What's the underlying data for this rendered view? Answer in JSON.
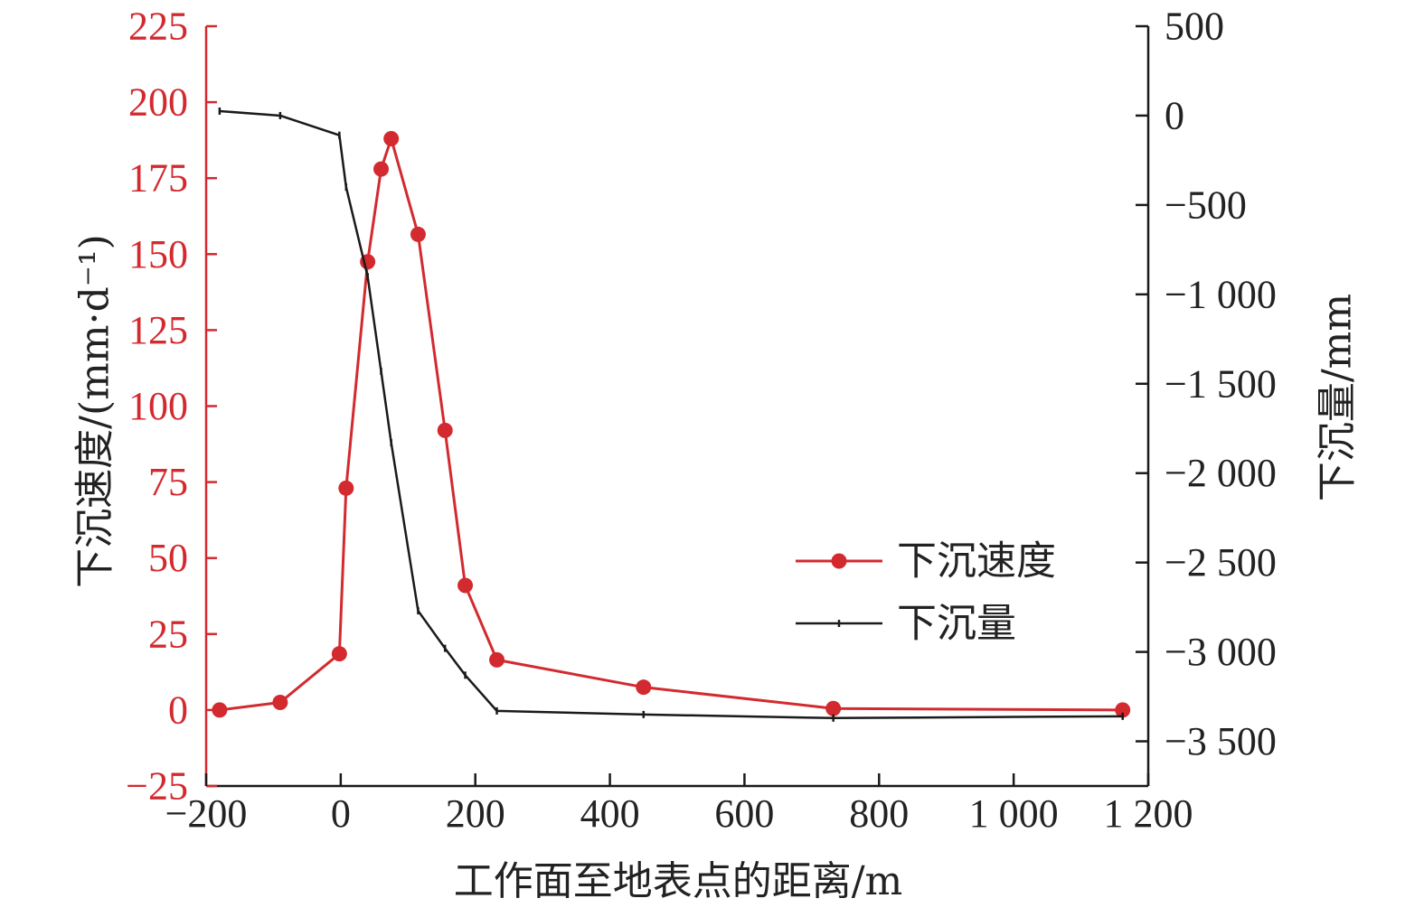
{
  "chart_data": {
    "type": "line",
    "xlabel": "工作面至地表点的距离/m",
    "ylabel_left": "下沉速度/(mm·d⁻¹)",
    "ylabel_right": "下沉量/mm",
    "xlim": [
      -200,
      1200
    ],
    "ylim_left": [
      -25,
      225
    ],
    "ylim_right": [
      -3750,
      500
    ],
    "x_ticks": [
      -200,
      0,
      200,
      400,
      600,
      800,
      1000,
      1200
    ],
    "x_tick_labels": [
      "−200",
      "0",
      "200",
      "400",
      "600",
      "800",
      "1 000",
      "1 200"
    ],
    "y_left_ticks": [
      -25,
      0,
      25,
      50,
      75,
      100,
      125,
      150,
      175,
      200,
      225
    ],
    "y_left_tick_labels": [
      "−25",
      "0",
      "25",
      "50",
      "75",
      "100",
      "125",
      "150",
      "175",
      "200",
      "225"
    ],
    "y_right_ticks": [
      500,
      0,
      -500,
      -1000,
      -1500,
      -2000,
      -2500,
      -3000,
      -3500
    ],
    "y_right_tick_labels": [
      "500",
      "0",
      "−500",
      "−1 000",
      "−1 500",
      "−2 000",
      "−2 500",
      "−3 000",
      "−3 500"
    ],
    "legend_position": "center-right",
    "series": [
      {
        "name": "下沉速度",
        "axis": "left",
        "color": "#d22a2f",
        "marker": "circle",
        "x": [
          -180,
          -90,
          -2,
          8,
          40,
          60,
          75,
          115,
          155,
          185,
          232,
          450,
          732,
          1162
        ],
        "y": [
          0,
          2.5,
          18.5,
          73,
          147.5,
          178,
          188,
          156.5,
          92,
          41,
          16.5,
          7.5,
          0.5,
          0
        ]
      },
      {
        "name": "下沉量",
        "axis": "right",
        "color": "#1a1a1a",
        "marker": "tick",
        "x": [
          -180,
          -90,
          -2,
          8,
          40,
          60,
          75,
          115,
          155,
          185,
          232,
          450,
          732,
          1162
        ],
        "y": [
          25,
          0,
          -110,
          -400,
          -900,
          -1430,
          -1830,
          -2770,
          -2980,
          -3130,
          -3330,
          -3350,
          -3370,
          -3360
        ]
      }
    ]
  }
}
